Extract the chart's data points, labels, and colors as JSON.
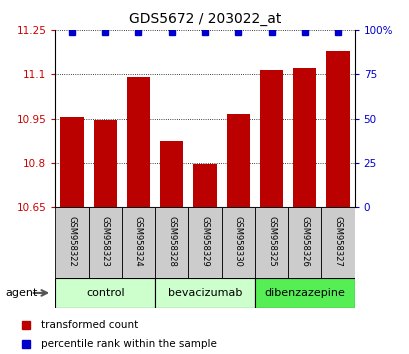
{
  "title": "GDS5672 / 203022_at",
  "samples": [
    "GSM958322",
    "GSM958323",
    "GSM958324",
    "GSM958328",
    "GSM958329",
    "GSM958330",
    "GSM958325",
    "GSM958326",
    "GSM958327"
  ],
  "transformed_counts": [
    10.955,
    10.945,
    11.09,
    10.875,
    10.795,
    10.965,
    11.115,
    11.12,
    11.18
  ],
  "percentile_ranks": [
    99,
    99,
    99,
    99,
    99,
    99,
    99,
    99,
    99
  ],
  "groups": [
    {
      "label": "control",
      "indices": [
        0,
        1,
        2
      ],
      "color": "#ccffcc"
    },
    {
      "label": "bevacizumab",
      "indices": [
        3,
        4,
        5
      ],
      "color": "#ccffcc"
    },
    {
      "label": "dibenzazepine",
      "indices": [
        6,
        7,
        8
      ],
      "color": "#55ee55"
    }
  ],
  "ylim": [
    10.65,
    11.25
  ],
  "yticks": [
    10.65,
    10.8,
    10.95,
    11.1,
    11.25
  ],
  "ytick_labels": [
    "10.65",
    "10.8",
    "10.95",
    "11.1",
    "11.25"
  ],
  "right_yticks": [
    0,
    25,
    50,
    75,
    100
  ],
  "right_ytick_labels": [
    "0",
    "25",
    "50",
    "75",
    "100%"
  ],
  "bar_color": "#bb0000",
  "dot_color": "#0000cc",
  "bar_width": 0.7,
  "left_tick_color": "#cc0000",
  "right_tick_color": "#0000cc",
  "legend_items": [
    {
      "label": "transformed count",
      "color": "#bb0000"
    },
    {
      "label": "percentile rank within the sample",
      "color": "#0000cc"
    }
  ],
  "sample_box_color": "#cccccc",
  "fig_bg": "#ffffff"
}
